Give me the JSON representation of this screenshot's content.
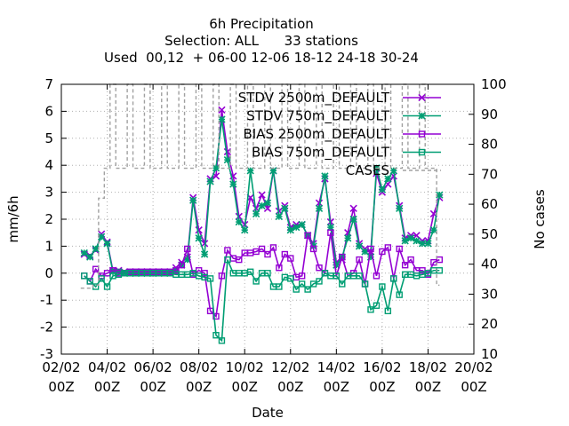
{
  "chart_data": {
    "type": "line",
    "title_lines": [
      "6h Precipitation",
      "Selection: ALL      33 stations",
      "Used  00,12  + 06-00 12-06 18-12 24-18 30-24"
    ],
    "xlabel": "Date",
    "ylabel": "mm/6h",
    "y2label": "No cases",
    "xlim": [
      0,
      18
    ],
    "ylim": [
      -3,
      7
    ],
    "y2lim": [
      10,
      100
    ],
    "x_ticks": [
      {
        "x": 0,
        "line1": "02/02",
        "line2": "00Z"
      },
      {
        "x": 2,
        "line1": "04/02",
        "line2": "00Z"
      },
      {
        "x": 4,
        "line1": "06/02",
        "line2": "00Z"
      },
      {
        "x": 6,
        "line1": "08/02",
        "line2": "00Z"
      },
      {
        "x": 8,
        "line1": "10/02",
        "line2": "00Z"
      },
      {
        "x": 10,
        "line1": "12/02",
        "line2": "00Z"
      },
      {
        "x": 12,
        "line1": "14/02",
        "line2": "00Z"
      },
      {
        "x": 14,
        "line1": "16/02",
        "line2": "00Z"
      },
      {
        "x": 16,
        "line1": "18/02",
        "line2": "00Z"
      },
      {
        "x": 18,
        "line1": "20/02",
        "line2": "00Z"
      }
    ],
    "y_ticks": [
      -3,
      -2,
      -1,
      0,
      1,
      2,
      3,
      4,
      5,
      6,
      7
    ],
    "y2_ticks": [
      10,
      20,
      30,
      40,
      50,
      60,
      70,
      80,
      90,
      100
    ],
    "grid": true,
    "legend_position": "top-right",
    "x": [
      1.0,
      1.25,
      1.5,
      1.75,
      2.0,
      2.25,
      2.5,
      2.75,
      3.0,
      3.25,
      3.5,
      3.75,
      4.0,
      4.25,
      4.5,
      4.75,
      5.0,
      5.25,
      5.5,
      5.75,
      6.0,
      6.25,
      6.5,
      6.75,
      7.0,
      7.25,
      7.5,
      7.75,
      8.0,
      8.25,
      8.5,
      8.75,
      9.0,
      9.25,
      9.5,
      9.75,
      10.0,
      10.25,
      10.5,
      10.75,
      11.0,
      11.25,
      11.5,
      11.75,
      12.0,
      12.25,
      12.5,
      12.75,
      13.0,
      13.25,
      13.5,
      13.75,
      14.0,
      14.25,
      14.5,
      14.75,
      15.0,
      15.25,
      15.5,
      15.75,
      16.0,
      16.25,
      16.5
    ],
    "series": [
      {
        "name": "STDV 2500m_DEFAULT",
        "color": "#9400d3",
        "marker": "x",
        "values": [
          0.7,
          0.65,
          0.85,
          1.45,
          1.15,
          0.1,
          0.1,
          0.05,
          0.05,
          0.05,
          0.05,
          0.05,
          0.05,
          0.05,
          0.05,
          0.05,
          0.2,
          0.4,
          0.6,
          2.8,
          1.6,
          1.1,
          3.5,
          3.6,
          6.05,
          4.5,
          3.6,
          2.1,
          1.8,
          2.8,
          2.4,
          2.9,
          2.4,
          3.8,
          2.3,
          2.5,
          1.7,
          1.8,
          1.8,
          1.4,
          1.1,
          2.6,
          3.5,
          1.9,
          0.4,
          0.5,
          1.5,
          2.4,
          1.1,
          0.9,
          0.8,
          3.7,
          3.0,
          3.3,
          3.6,
          2.5,
          1.3,
          1.4,
          1.4,
          1.2,
          1.2,
          2.2,
          2.8
        ]
      },
      {
        "name": "STDV 750m_DEFAULT",
        "color": "#009e73",
        "marker": "star",
        "values": [
          0.75,
          0.6,
          0.9,
          1.35,
          1.1,
          0.05,
          0.05,
          0.0,
          0.0,
          0.0,
          0.0,
          0.0,
          0.0,
          0.0,
          0.0,
          0.0,
          0.1,
          0.3,
          0.5,
          2.7,
          1.3,
          0.7,
          3.4,
          3.9,
          5.7,
          4.2,
          3.3,
          1.9,
          1.6,
          3.8,
          2.2,
          2.5,
          2.6,
          3.8,
          2.1,
          2.4,
          1.6,
          1.7,
          1.8,
          1.4,
          1.0,
          2.4,
          3.6,
          1.7,
          0.3,
          0.6,
          1.3,
          2.0,
          1.0,
          0.8,
          0.6,
          3.9,
          3.1,
          3.5,
          3.8,
          2.4,
          1.2,
          1.3,
          1.2,
          1.1,
          1.1,
          1.6,
          2.9
        ]
      },
      {
        "name": "BIAS 2500m_DEFAULT",
        "color": "#9400d3",
        "marker": "square",
        "values": [
          -0.1,
          -0.3,
          0.15,
          -0.1,
          0.0,
          0.1,
          0.0,
          0.0,
          0.05,
          0.05,
          0.05,
          0.05,
          0.05,
          0.05,
          0.05,
          0.05,
          0.1,
          0.3,
          0.9,
          -0.05,
          0.1,
          0.0,
          -1.4,
          -1.6,
          -0.1,
          0.85,
          0.55,
          0.5,
          0.75,
          0.75,
          0.8,
          0.9,
          0.7,
          0.95,
          0.2,
          0.7,
          0.55,
          -0.15,
          -0.1,
          1.4,
          0.9,
          0.2,
          0.0,
          1.5,
          -0.1,
          0.6,
          -0.1,
          0.0,
          0.5,
          -0.4,
          0.9,
          -0.1,
          0.8,
          0.95,
          -0.2,
          0.9,
          0.3,
          0.5,
          0.1,
          0.1,
          -0.05,
          0.4,
          0.5
        ]
      },
      {
        "name": "BIAS 750m_DEFAULT",
        "color": "#009e73",
        "marker": "square",
        "values": [
          -0.1,
          -0.3,
          -0.5,
          -0.2,
          -0.5,
          -0.1,
          -0.05,
          0.0,
          0.0,
          0.0,
          0.0,
          0.0,
          0.0,
          0.0,
          0.0,
          0.0,
          -0.05,
          -0.05,
          -0.05,
          0.0,
          -0.1,
          -0.15,
          -0.2,
          -2.3,
          -2.5,
          0.5,
          0.0,
          0.0,
          0.0,
          0.05,
          -0.3,
          0.0,
          0.0,
          -0.5,
          -0.5,
          -0.15,
          -0.2,
          -0.6,
          -0.4,
          -0.6,
          -0.4,
          -0.3,
          0.0,
          -0.1,
          -0.1,
          -0.4,
          -0.1,
          -0.1,
          -0.1,
          -0.4,
          -1.35,
          -1.2,
          -0.5,
          -1.4,
          -0.2,
          -0.8,
          -0.05,
          -0.05,
          -0.1,
          -0.05,
          0.0,
          0.1,
          0.1
        ]
      },
      {
        "name": "CASES",
        "color": "#a0a0a0",
        "axis": "y2",
        "dashed": true,
        "values": [
          32,
          32,
          33,
          62,
          72,
          100,
          72,
          72,
          100,
          72,
          72,
          100,
          72,
          72,
          100,
          72,
          72,
          100,
          72,
          72,
          100,
          72,
          72,
          100,
          72,
          72,
          100,
          72,
          72,
          100,
          72,
          72,
          100,
          72,
          72,
          100,
          72,
          72,
          100,
          72,
          72,
          100,
          72,
          72,
          100,
          72,
          72,
          100,
          72,
          72,
          100,
          72,
          72,
          100,
          72,
          72,
          100,
          72,
          72,
          100,
          72,
          72,
          33
        ]
      }
    ]
  }
}
